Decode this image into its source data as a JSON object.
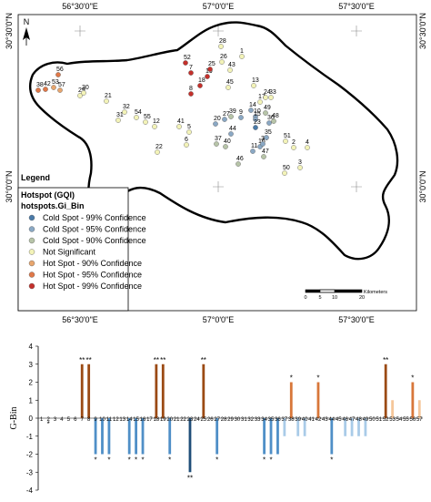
{
  "map": {
    "top_labels": [
      "56°30'0\"E",
      "57°0'0\"E",
      "57°30'0\"E"
    ],
    "bottom_labels": [
      "56°30'0\"E",
      "57°0'0\"E",
      "57°30'0\"E"
    ],
    "left_labels": [
      "30°30'0\"N",
      "30°0'0\"N"
    ],
    "right_labels": [
      "30°30'0\"N",
      "30°0'0\"N"
    ],
    "north_label": "N",
    "legend": {
      "title": "Legend",
      "layer": "Hotspot (GQI)",
      "field": "hotspots.Gi_Bin",
      "items": [
        {
          "label": "Cold Spot - 99% Confidence",
          "color": "#4a7aa8"
        },
        {
          "label": "Cold Spot - 95% Confidence",
          "color": "#8aa8c4"
        },
        {
          "label": "Cold Spot - 90% Confidence",
          "color": "#b7c4a8"
        },
        {
          "label": "Not Significant",
          "color": "#f3f3b8"
        },
        {
          "label": "Hot Spot - 90% Confidence",
          "color": "#e8a66e"
        },
        {
          "label": "Hot Spot - 95% Confidence",
          "color": "#e07848"
        },
        {
          "label": "Hot Spot - 99% Confidence",
          "color": "#c4302b"
        }
      ]
    },
    "scale_bar": {
      "ticks": [
        "0",
        "5",
        "10",
        "20"
      ],
      "unit": "Kilometers"
    },
    "sites": [
      {
        "id": "1",
        "cls": 3
      },
      {
        "id": "2",
        "cls": 3
      },
      {
        "id": "3",
        "cls": 3
      },
      {
        "id": "4",
        "cls": 3
      },
      {
        "id": "5",
        "cls": 3
      },
      {
        "id": "6",
        "cls": 3
      },
      {
        "id": "7",
        "cls": 6
      },
      {
        "id": "8",
        "cls": 6
      },
      {
        "id": "9",
        "cls": 1
      },
      {
        "id": "10",
        "cls": 1
      },
      {
        "id": "11",
        "cls": 1
      },
      {
        "id": "12",
        "cls": 3
      },
      {
        "id": "13",
        "cls": 3
      },
      {
        "id": "14",
        "cls": 1
      },
      {
        "id": "15",
        "cls": 1
      },
      {
        "id": "16",
        "cls": 1
      },
      {
        "id": "17",
        "cls": 3
      },
      {
        "id": "18",
        "cls": 6
      },
      {
        "id": "19",
        "cls": 6
      },
      {
        "id": "20",
        "cls": 1
      },
      {
        "id": "21",
        "cls": 3
      },
      {
        "id": "22",
        "cls": 3
      },
      {
        "id": "23",
        "cls": 0
      },
      {
        "id": "24",
        "cls": 3
      },
      {
        "id": "25",
        "cls": 6
      },
      {
        "id": "26",
        "cls": 3
      },
      {
        "id": "27",
        "cls": 1
      },
      {
        "id": "28",
        "cls": 3
      },
      {
        "id": "29",
        "cls": 3
      },
      {
        "id": "30",
        "cls": 3
      },
      {
        "id": "31",
        "cls": 3
      },
      {
        "id": "32",
        "cls": 3
      },
      {
        "id": "33",
        "cls": 3
      },
      {
        "id": "34",
        "cls": 1
      },
      {
        "id": "35",
        "cls": 1
      },
      {
        "id": "36",
        "cls": 1
      },
      {
        "id": "37",
        "cls": 2
      },
      {
        "id": "38",
        "cls": 5
      },
      {
        "id": "39",
        "cls": 2
      },
      {
        "id": "40",
        "cls": 2
      },
      {
        "id": "41",
        "cls": 3
      },
      {
        "id": "42",
        "cls": 5
      },
      {
        "id": "43",
        "cls": 3
      },
      {
        "id": "44",
        "cls": 1
      },
      {
        "id": "45",
        "cls": 3
      },
      {
        "id": "46",
        "cls": 2
      },
      {
        "id": "47",
        "cls": 2
      },
      {
        "id": "48",
        "cls": 2
      },
      {
        "id": "49",
        "cls": 2
      },
      {
        "id": "50",
        "cls": 3
      },
      {
        "id": "51",
        "cls": 3
      },
      {
        "id": "52",
        "cls": 6
      },
      {
        "id": "53",
        "cls": 4
      },
      {
        "id": "54",
        "cls": 3
      },
      {
        "id": "55",
        "cls": 3
      },
      {
        "id": "56",
        "cls": 5
      },
      {
        "id": "57",
        "cls": 4
      }
    ]
  },
  "chart_data": {
    "type": "bar",
    "ylabel": "G-Bin",
    "ylim": [
      -4,
      4
    ],
    "yticks": [
      -4,
      -3,
      -2,
      -1,
      0,
      1,
      2,
      3,
      4
    ],
    "categories": [
      "1",
      "2",
      "3",
      "4",
      "5",
      "6",
      "7",
      "8",
      "9",
      "10",
      "11",
      "12",
      "13",
      "14",
      "15",
      "16",
      "17",
      "18",
      "19",
      "20",
      "21",
      "22",
      "23",
      "24",
      "25",
      "26",
      "27",
      "28",
      "29",
      "30",
      "31",
      "32",
      "33",
      "34",
      "35",
      "36",
      "37",
      "38",
      "39",
      "40",
      "41",
      "42",
      "43",
      "44",
      "45",
      "46",
      "47",
      "48",
      "49",
      "50",
      "51",
      "52",
      "53",
      "54",
      "55",
      "56",
      "57"
    ],
    "values": [
      0,
      0,
      0,
      0,
      0,
      0,
      3,
      3,
      -2,
      -2,
      -2,
      0,
      0,
      -2,
      -2,
      -2,
      0,
      3,
      3,
      -2,
      0,
      0,
      -3,
      0,
      3,
      0,
      -2,
      0,
      0,
      0,
      0,
      0,
      0,
      -2,
      -2,
      -2,
      -1,
      2,
      -1,
      -1,
      0,
      2,
      0,
      -2,
      0,
      -1,
      -1,
      -1,
      -1,
      0,
      0,
      3,
      1,
      0,
      0,
      2,
      1
    ],
    "stars_above": [
      "",
      "",
      "",
      "",
      "",
      "",
      "**",
      "**",
      "",
      "",
      "",
      "",
      "",
      "",
      "",
      "",
      "",
      "**",
      "**",
      "",
      "",
      "",
      "",
      "",
      "**",
      "",
      "",
      "",
      "",
      "",
      "",
      "",
      "",
      "",
      "",
      "",
      "",
      "*",
      "",
      "",
      "",
      "*",
      "",
      "",
      "",
      "",
      "",
      "",
      "",
      "",
      "",
      "**",
      "",
      "",
      "",
      "*",
      ""
    ],
    "stars_below": [
      "",
      "*",
      "",
      "",
      "",
      "",
      "",
      "",
      "*",
      "",
      "*",
      "",
      "",
      "*",
      "*",
      "*",
      "",
      "",
      "",
      "*",
      "",
      "",
      "**",
      "",
      "",
      "",
      "*",
      "",
      "",
      "",
      "",
      "",
      "",
      "*",
      "*",
      "",
      "",
      "",
      "",
      "",
      "",
      "",
      "",
      "*",
      "",
      "",
      "",
      "",
      "",
      "",
      "",
      "",
      "",
      "",
      "",
      "",
      ""
    ],
    "colors": {
      "-3": "#1f4e79",
      "-2": "#4f8fc7",
      "-1": "#a9cbe8",
      "0": "none",
      "1": "#f5c69a",
      "2": "#d8773a",
      "3": "#9b4a14"
    }
  }
}
